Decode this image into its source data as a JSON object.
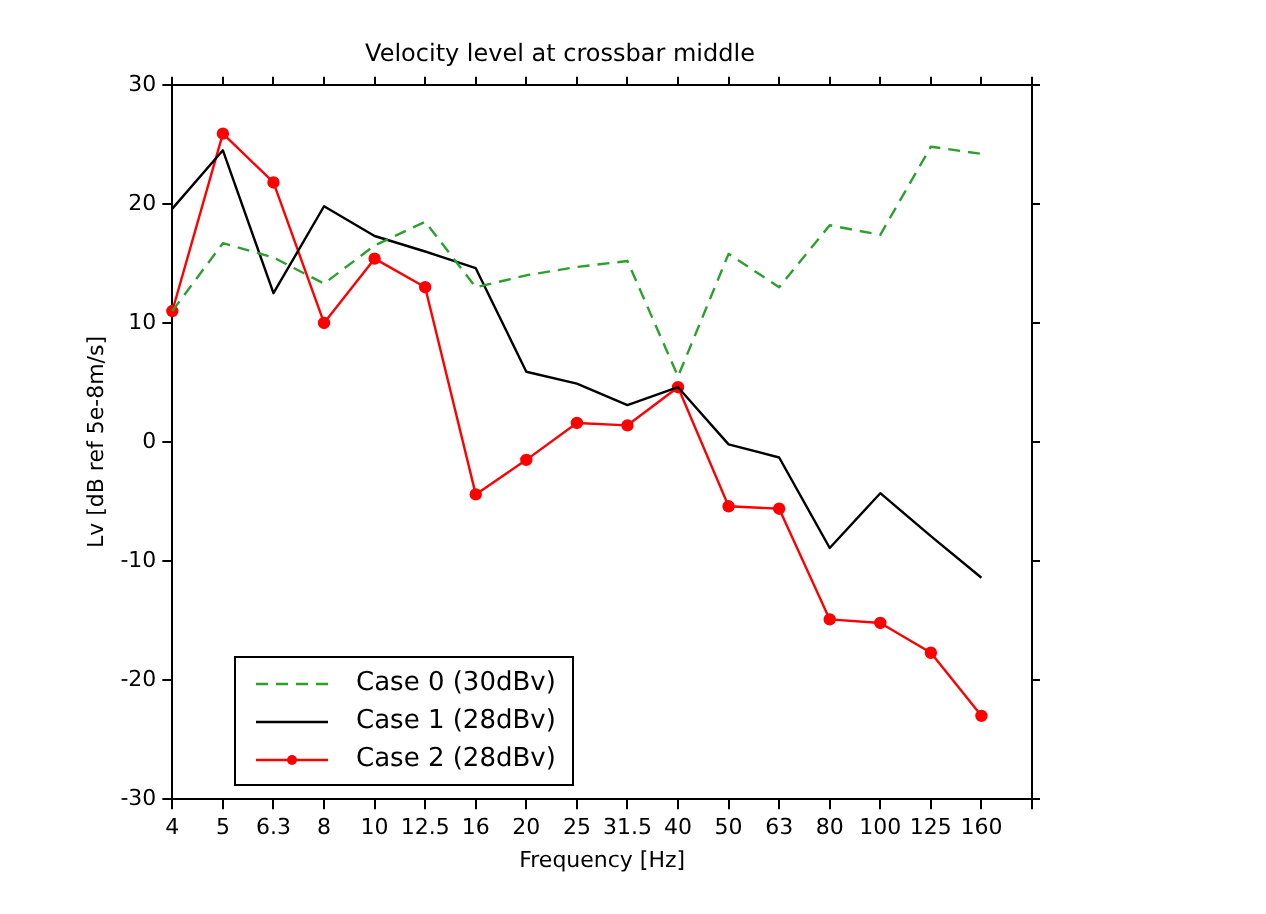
{
  "chart_data": {
    "type": "line",
    "title": "Velocity level at crossbar middle",
    "xlabel": "Frequency [Hz]",
    "ylabel": "Lv [dB ref 5e-8m/s]",
    "categories": [
      "4",
      "5",
      "6.3",
      "8",
      "10",
      "12.5",
      "16",
      "20",
      "25",
      "31.5",
      "40",
      "50",
      "63",
      "80",
      "100",
      "125",
      "160",
      null
    ],
    "ylim": [
      -30,
      30
    ],
    "yticks": [
      -30,
      -20,
      -10,
      0,
      10,
      20,
      30
    ],
    "grid": false,
    "legend": "bottom left",
    "series": [
      {
        "name": "Case 0 (30dBv)",
        "color": "#2ca02c",
        "line_style": "dashed",
        "marker": "none",
        "values": [
          11,
          16.7,
          15.5,
          13.3,
          16.5,
          18.5,
          13,
          14,
          14.7,
          15.2,
          5.5,
          15.8,
          13,
          18.2,
          17.4,
          24.8,
          24.2,
          null
        ]
      },
      {
        "name": "Case 1 (28dBv)",
        "color": "#000000",
        "line_style": "solid",
        "marker": "none",
        "values": [
          19.6,
          24.5,
          12.5,
          19.8,
          17.3,
          16,
          14.6,
          5.9,
          4.9,
          3.1,
          4.6,
          -0.2,
          -1.3,
          -8.9,
          -4.3,
          -7.9,
          -11.4,
          null
        ]
      },
      {
        "name": "Case 2 (28dBv)",
        "color": "#ff0000",
        "line_style": "solid",
        "marker": "circle",
        "values": [
          11,
          25.9,
          21.8,
          10,
          15.4,
          13,
          -4.4,
          -1.5,
          1.6,
          1.4,
          4.6,
          -5.4,
          -5.6,
          -14.9,
          -15.2,
          -17.7,
          -23,
          null
        ]
      }
    ]
  }
}
